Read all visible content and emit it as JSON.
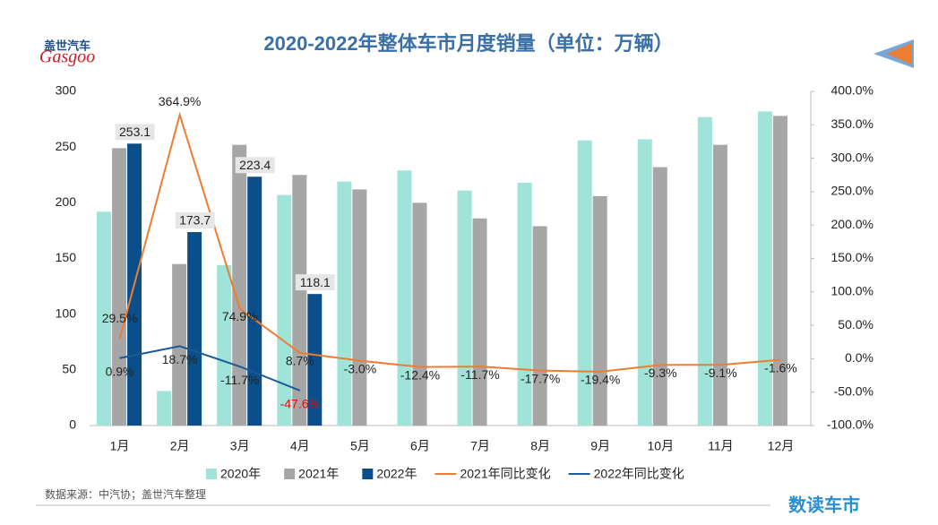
{
  "logo": {
    "brand": "Gasgoo",
    "name": "盖世汽车"
  },
  "source": "数据来源：中汽协；盖世汽车整理",
  "footer_brand": "数读车市",
  "chart_data": {
    "type": "bar-line",
    "title": "2020-2022年整体车市月度销量（单位：万辆）",
    "categories": [
      "1月",
      "2月",
      "3月",
      "4月",
      "5月",
      "6月",
      "7月",
      "8月",
      "9月",
      "10月",
      "11月",
      "12月"
    ],
    "ylim": [
      0,
      300
    ],
    "yticks": [
      0,
      50,
      100,
      150,
      200,
      250,
      300
    ],
    "y2lim": [
      -100,
      400
    ],
    "y2ticks": [
      {
        "value": -100,
        "label": "-100.0%"
      },
      {
        "value": -50,
        "label": "-50.0%"
      },
      {
        "value": 0,
        "label": "0.0%"
      },
      {
        "value": 50,
        "label": "50.0%"
      },
      {
        "value": 100,
        "label": "100.0%"
      },
      {
        "value": 150,
        "label": "150.0%"
      },
      {
        "value": 200,
        "label": "200.0%"
      },
      {
        "value": 250,
        "label": "250.0%"
      },
      {
        "value": 300,
        "label": "300.0%"
      },
      {
        "value": 350,
        "label": "350.0%"
      },
      {
        "value": 400,
        "label": "400.0%"
      }
    ],
    "legend": "bottom",
    "series": [
      {
        "name": "2020年",
        "kind": "bar",
        "color": "#9fe3d9",
        "values": [
          192,
          31,
          144,
          207,
          219,
          229,
          211,
          218,
          256,
          257,
          277,
          282
        ]
      },
      {
        "name": "2021年",
        "kind": "bar",
        "color": "#a6a6a6",
        "values": [
          249,
          145,
          252,
          225,
          212,
          200,
          186,
          179,
          206,
          232,
          252,
          278
        ]
      },
      {
        "name": "2022年",
        "kind": "bar",
        "color": "#0b4f8a",
        "show_labels": true,
        "values": [
          253.1,
          173.7,
          223.4,
          118.1,
          null,
          null,
          null,
          null,
          null,
          null,
          null,
          null
        ]
      },
      {
        "name": "2021年同比变化",
        "kind": "line",
        "axis": "y2",
        "color": "#ed7d31",
        "values": [
          29.5,
          364.9,
          74.9,
          8.7,
          -3.0,
          -12.4,
          -11.7,
          -17.7,
          -19.4,
          -9.3,
          -9.1,
          -1.6
        ],
        "value_labels": [
          "29.5%",
          "364.9%",
          "74.9%",
          "8.7%",
          "-3.0%",
          "-12.4%",
          "-11.7%",
          "-17.7%",
          "-19.4%",
          "-9.3%",
          "-9.1%",
          "-1.6%"
        ]
      },
      {
        "name": "2022年同比变化",
        "kind": "line",
        "axis": "y2",
        "color": "#1a5a96",
        "values": [
          0.9,
          18.7,
          -11.7,
          -47.6,
          null,
          null,
          null,
          null,
          null,
          null,
          null,
          null
        ],
        "value_labels": [
          "0.9%",
          "18.7%",
          "-11.7%",
          "-47.6%",
          null,
          null,
          null,
          null,
          null,
          null,
          null,
          null
        ],
        "label_colors": [
          "#222",
          "#222",
          "#222",
          "#e01010",
          null,
          null,
          null,
          null,
          null,
          null,
          null,
          null
        ]
      }
    ]
  }
}
